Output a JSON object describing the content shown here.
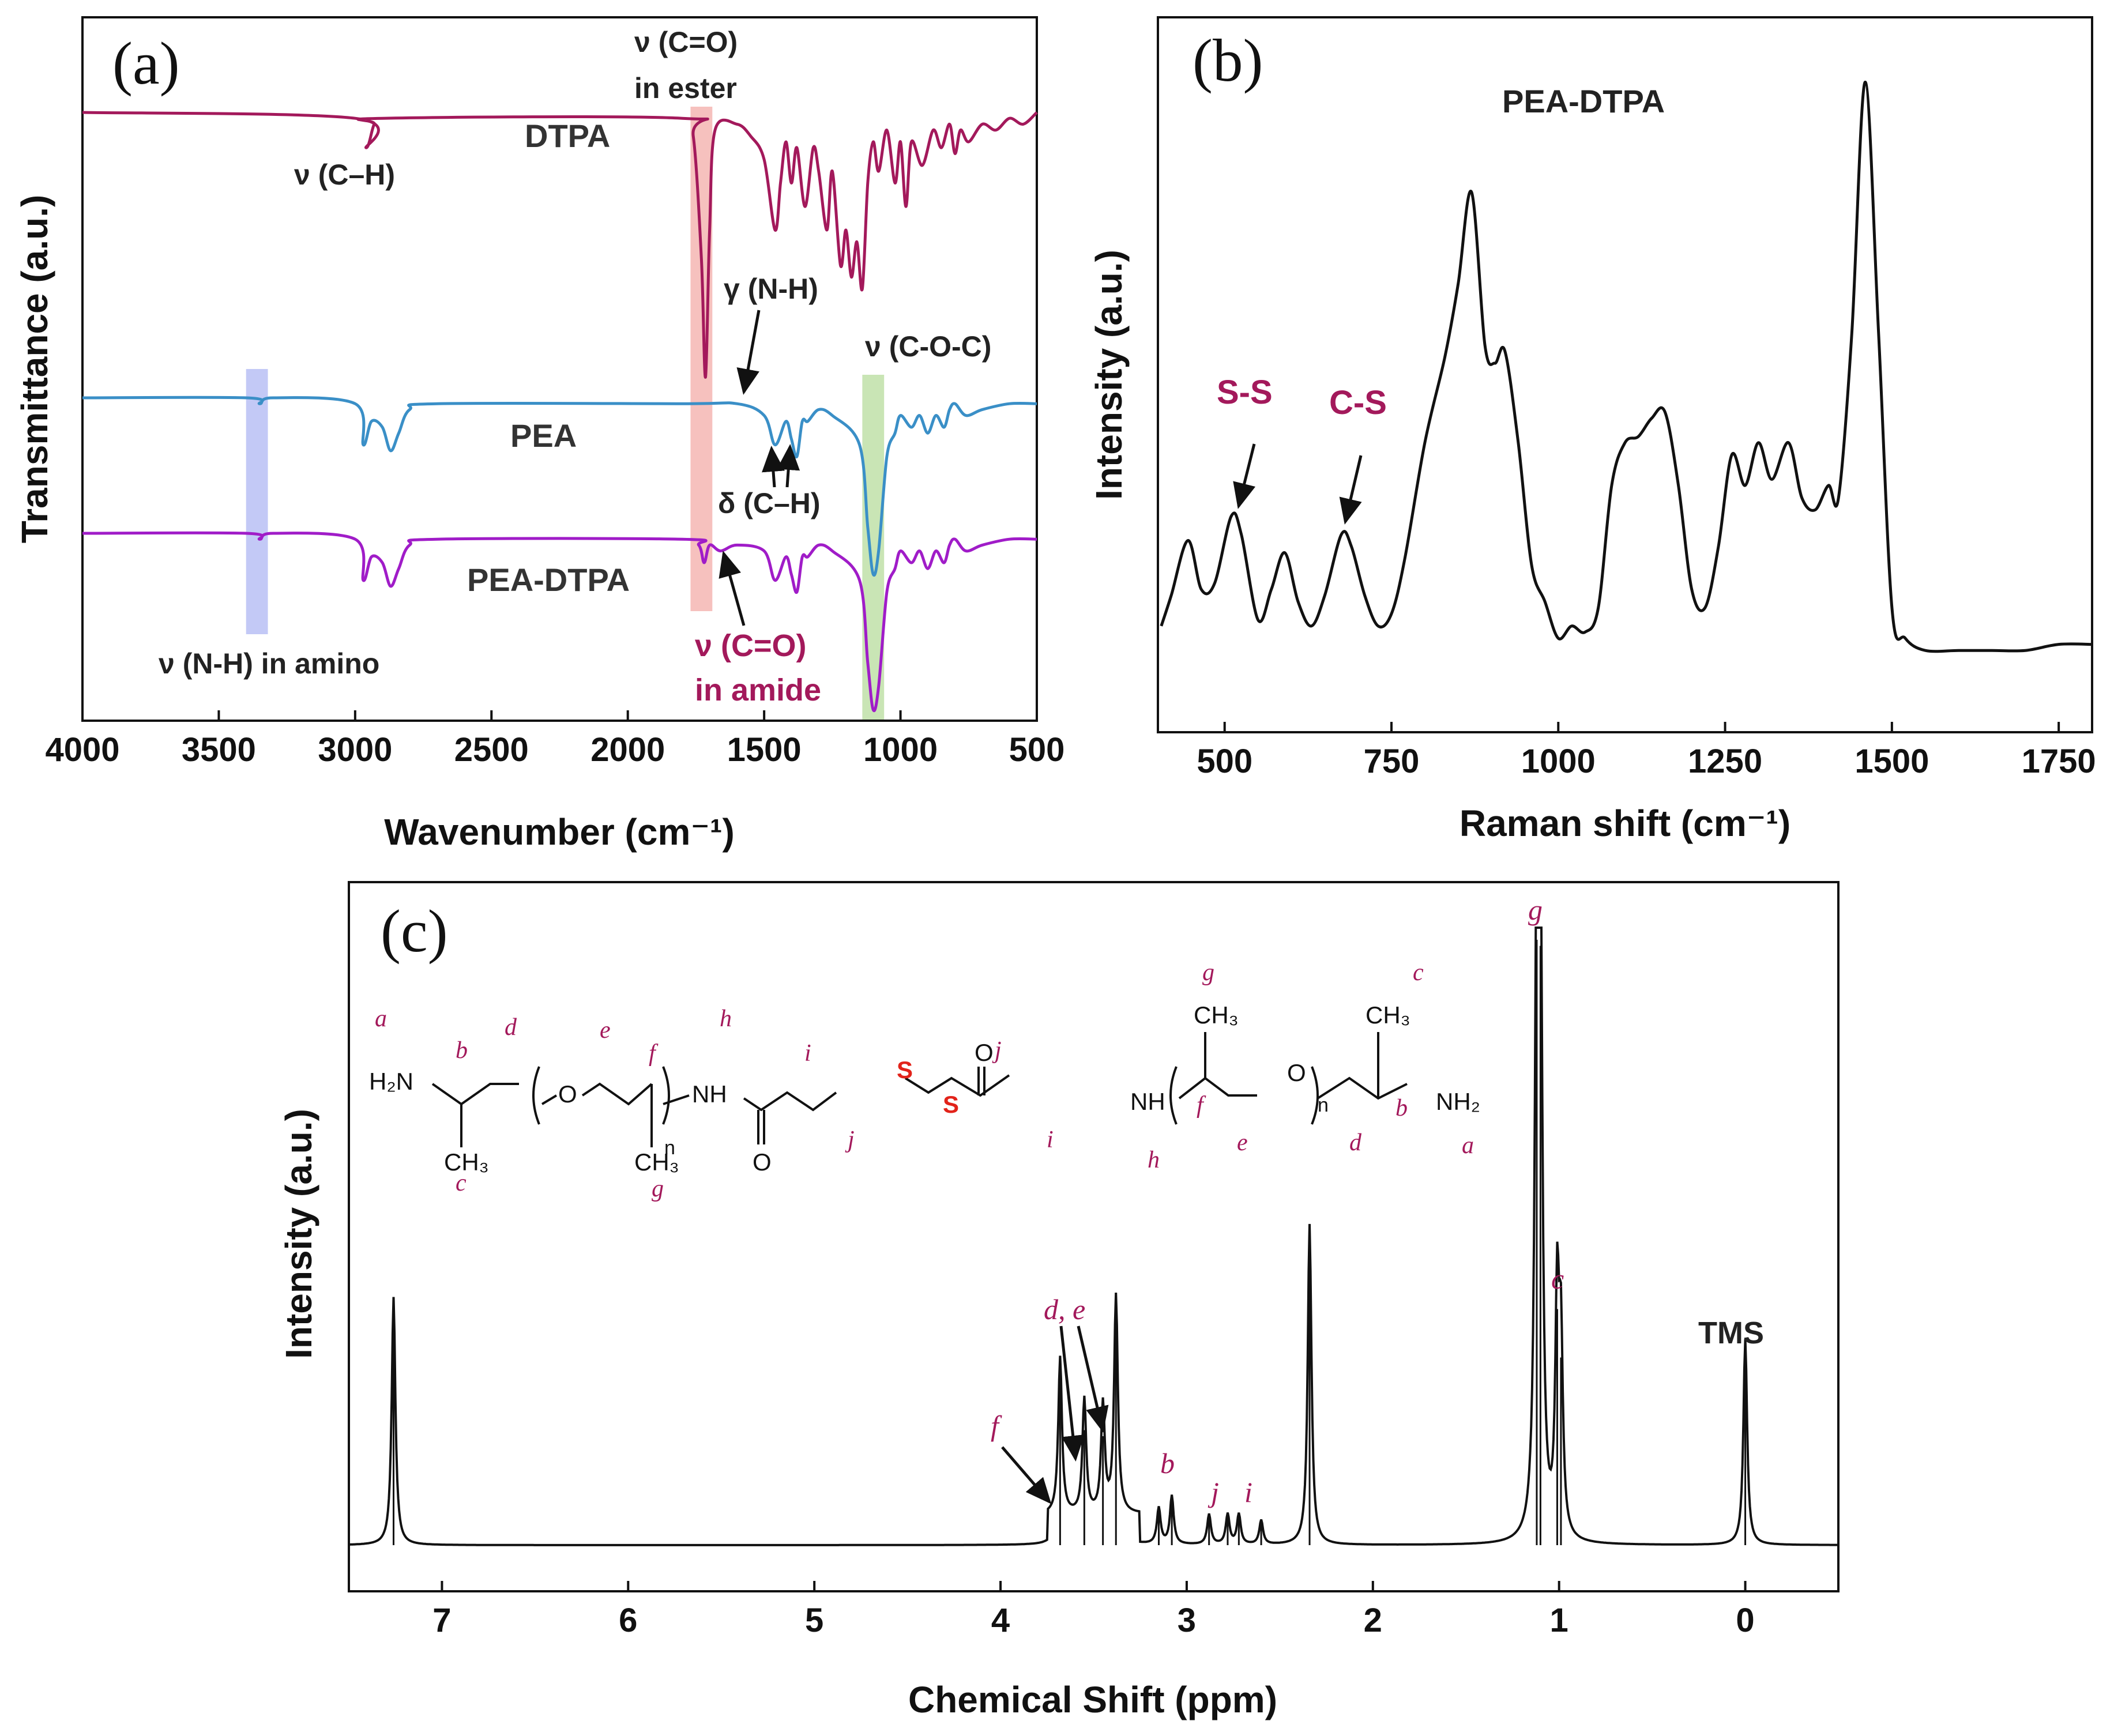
{
  "colors": {
    "dtpa": "#a3195b",
    "pea": "#3a8fc7",
    "pea_dtpa": "#a01cc8",
    "annot": "#a3195b",
    "band_red": "#f4b6b3",
    "band_green": "#bfe0a8",
    "band_blue": "#b8c0f5",
    "black": "#111111",
    "ss_red": "#e2231a"
  },
  "chart_data": [
    {
      "id": "a",
      "type": "line",
      "panel_label": "(a)",
      "xlabel": "Wavenumber (cm⁻¹)",
      "ylabel": "Transmittance (a.u.)",
      "xlim": [
        4000,
        500
      ],
      "xticks": [
        4000,
        3500,
        3000,
        2500,
        2000,
        1500,
        1000,
        500
      ],
      "yticks_shown": false,
      "series": [
        {
          "name": "DTPA",
          "color": "#a3195b",
          "offset": 1.0,
          "x": [
            4000,
            3000,
            2960,
            2930,
            2900,
            1800,
            1760,
            1730,
            1715,
            1700,
            1680,
            1600,
            1550,
            1500,
            1460,
            1440,
            1420,
            1400,
            1380,
            1350,
            1320,
            1300,
            1270,
            1250,
            1220,
            1200,
            1180,
            1160,
            1140,
            1120,
            1100,
            1080,
            1050,
            1020,
            1000,
            980,
            960,
            920,
            880,
            850,
            820,
            800,
            780,
            750,
            700,
            650,
            600,
            550,
            500
          ],
          "y": [
            0,
            -0.01,
            -0.06,
            -0.02,
            -0.01,
            -0.01,
            -0.04,
            -0.25,
            -0.45,
            -0.2,
            -0.03,
            -0.02,
            -0.04,
            -0.08,
            -0.2,
            -0.12,
            -0.05,
            -0.12,
            -0.06,
            -0.16,
            -0.06,
            -0.1,
            -0.2,
            -0.1,
            -0.26,
            -0.2,
            -0.28,
            -0.22,
            -0.3,
            -0.12,
            -0.05,
            -0.1,
            -0.03,
            -0.12,
            -0.05,
            -0.16,
            -0.05,
            -0.09,
            -0.03,
            -0.06,
            -0.02,
            -0.07,
            -0.03,
            -0.05,
            -0.02,
            -0.03,
            -0.01,
            -0.02,
            0
          ]
        },
        {
          "name": "PEA",
          "color": "#3a8fc7",
          "offset": 0.0,
          "x": [
            4000,
            3400,
            3350,
            3300,
            3000,
            2970,
            2940,
            2900,
            2870,
            2840,
            2800,
            2700,
            1800,
            1600,
            1500,
            1460,
            1420,
            1400,
            1380,
            1360,
            1340,
            1300,
            1250,
            1150,
            1120,
            1100,
            1080,
            1050,
            1020,
            1000,
            960,
            930,
            900,
            870,
            840,
            820,
            800,
            760,
            700,
            600,
            500
          ],
          "y": [
            0,
            0,
            -0.01,
            0,
            -0.01,
            -0.08,
            -0.04,
            -0.05,
            -0.09,
            -0.06,
            -0.02,
            -0.01,
            -0.01,
            -0.01,
            -0.03,
            -0.08,
            -0.04,
            -0.07,
            -0.1,
            -0.04,
            -0.04,
            -0.02,
            -0.03,
            -0.08,
            -0.22,
            -0.3,
            -0.26,
            -0.1,
            -0.06,
            -0.03,
            -0.05,
            -0.03,
            -0.06,
            -0.03,
            -0.05,
            -0.02,
            -0.01,
            -0.03,
            -0.02,
            -0.01,
            -0.01
          ]
        },
        {
          "name": "PEA-DTPA",
          "color": "#a01cc8",
          "offset": -0.22,
          "x": [
            4000,
            3400,
            3350,
            3300,
            3000,
            2970,
            2940,
            2900,
            2870,
            2840,
            2800,
            2700,
            1800,
            1740,
            1720,
            1700,
            1660,
            1600,
            1500,
            1460,
            1420,
            1400,
            1380,
            1360,
            1340,
            1300,
            1250,
            1150,
            1120,
            1100,
            1080,
            1050,
            1020,
            1000,
            960,
            930,
            900,
            870,
            840,
            820,
            800,
            760,
            700,
            600,
            500
          ],
          "y": [
            0,
            0,
            -0.01,
            0,
            -0.01,
            -0.08,
            -0.04,
            -0.05,
            -0.09,
            -0.06,
            -0.02,
            -0.01,
            -0.01,
            -0.02,
            -0.05,
            -0.02,
            -0.03,
            -0.02,
            -0.03,
            -0.08,
            -0.04,
            -0.07,
            -0.1,
            -0.04,
            -0.04,
            -0.02,
            -0.03,
            -0.08,
            -0.22,
            -0.3,
            -0.26,
            -0.1,
            -0.06,
            -0.03,
            -0.05,
            -0.03,
            -0.06,
            -0.03,
            -0.05,
            -0.02,
            -0.01,
            -0.03,
            -0.02,
            -0.01,
            -0.01
          ]
        }
      ],
      "bands": [
        {
          "name": "nh-amino",
          "from": 3400,
          "to": 3320,
          "color": "#b8c0f5"
        },
        {
          "name": "co-ester",
          "from": 1770,
          "to": 1690,
          "color": "#f4b6b3"
        },
        {
          "name": "coc",
          "from": 1140,
          "to": 1060,
          "color": "#bfe0a8"
        }
      ],
      "annotations": {
        "dtpa": "DTPA",
        "pea": "PEA",
        "pea_dtpa": "PEA-DTPA",
        "ch_stretch": "ν (C–H)",
        "co_ester_1": "ν (C=O)",
        "co_ester_2": "in ester",
        "nh_gamma": "γ (N-H)",
        "coc": "ν (C-O-C)",
        "ch_delta": "δ (C–H)",
        "nh_amino": "ν (N-H) in amino",
        "co_amide_1": "ν (C=O)",
        "co_amide_2": "in amide"
      }
    },
    {
      "id": "b",
      "type": "line",
      "panel_label": "(b)",
      "title": "PEA-DTPA",
      "xlabel": "Raman shift (cm⁻¹)",
      "ylabel": "Intensity (a.u.)",
      "xlim": [
        400,
        1800
      ],
      "xticks": [
        500,
        750,
        1000,
        1250,
        1500,
        1750
      ],
      "ylim": [
        0,
        1
      ],
      "series": [
        {
          "name": "PEA-DTPA",
          "x": [
            405,
            420,
            445,
            465,
            485,
            510,
            525,
            550,
            570,
            590,
            610,
            630,
            650,
            675,
            690,
            710,
            730,
            750,
            770,
            800,
            830,
            850,
            870,
            890,
            905,
            920,
            940,
            960,
            980,
            1000,
            1020,
            1040,
            1060,
            1080,
            1100,
            1120,
            1140,
            1160,
            1180,
            1200,
            1220,
            1240,
            1260,
            1280,
            1300,
            1320,
            1345,
            1365,
            1385,
            1405,
            1420,
            1440,
            1460,
            1480,
            1500,
            1520,
            1550,
            1600,
            1650,
            1700,
            1750,
            1800
          ],
          "y": [
            0.07,
            0.12,
            0.21,
            0.13,
            0.14,
            0.25,
            0.22,
            0.08,
            0.13,
            0.19,
            0.11,
            0.07,
            0.12,
            0.22,
            0.2,
            0.12,
            0.07,
            0.09,
            0.18,
            0.37,
            0.51,
            0.63,
            0.78,
            0.53,
            0.5,
            0.52,
            0.37,
            0.17,
            0.11,
            0.05,
            0.07,
            0.06,
            0.1,
            0.3,
            0.37,
            0.38,
            0.41,
            0.42,
            0.3,
            0.13,
            0.1,
            0.2,
            0.35,
            0.3,
            0.37,
            0.31,
            0.37,
            0.28,
            0.26,
            0.3,
            0.28,
            0.55,
            0.96,
            0.55,
            0.1,
            0.05,
            0.03,
            0.03,
            0.03,
            0.03,
            0.04,
            0.04
          ]
        }
      ],
      "annotations": {
        "ss": "S-S",
        "ss_x": 510,
        "cs": "C-S",
        "cs_x": 675
      }
    },
    {
      "id": "c",
      "type": "line",
      "panel_label": "(c)",
      "xlabel": "Chemical Shift (ppm)",
      "ylabel": "Intensity (a.u.)",
      "xlim": [
        7.5,
        -0.5
      ],
      "xticks": [
        7,
        6,
        5,
        4,
        3,
        2,
        1,
        0
      ],
      "ylim": [
        0,
        1
      ],
      "peaks": [
        {
          "ppm": 7.26,
          "height": 0.41
        },
        {
          "ppm": 3.68,
          "height": 0.26
        },
        {
          "ppm": 3.55,
          "height": 0.19
        },
        {
          "ppm": 3.45,
          "height": 0.18
        },
        {
          "ppm": 3.38,
          "height": 0.36
        },
        {
          "ppm": 3.15,
          "height": 0.06
        },
        {
          "ppm": 3.08,
          "height": 0.08
        },
        {
          "ppm": 2.88,
          "height": 0.05
        },
        {
          "ppm": 2.78,
          "height": 0.05
        },
        {
          "ppm": 2.72,
          "height": 0.05
        },
        {
          "ppm": 2.6,
          "height": 0.04
        },
        {
          "ppm": 2.34,
          "height": 0.53
        },
        {
          "ppm": 1.12,
          "height": 1.0
        },
        {
          "ppm": 1.1,
          "height": 0.99
        },
        {
          "ppm": 1.01,
          "height": 0.39
        },
        {
          "ppm": 0.99,
          "height": 0.31
        },
        {
          "ppm": 0.0,
          "height": 0.34
        }
      ],
      "annotations": {
        "tms": "TMS",
        "g": "g",
        "c": "c",
        "de": "d, e",
        "f": "f",
        "b": "b",
        "j": "j",
        "i": "i"
      },
      "structure": {
        "h2n": "H₂N",
        "nh2": "NH₂",
        "nh": "NH",
        "o": "O",
        "s": "S",
        "n": "n",
        "ch3": "CH₃",
        "labels": [
          "a",
          "b",
          "c",
          "d",
          "e",
          "f",
          "g",
          "h",
          "i",
          "j"
        ]
      }
    }
  ]
}
